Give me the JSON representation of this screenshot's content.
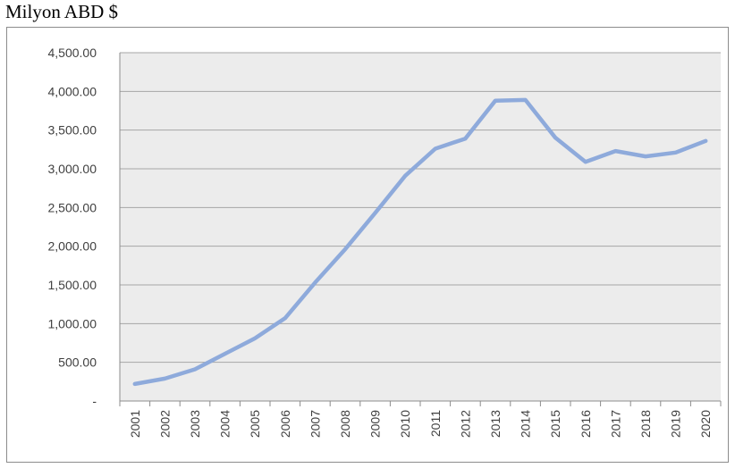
{
  "chart_data": {
    "type": "line",
    "title": "Milyon ABD $",
    "xlabel": "",
    "ylabel": "",
    "ylim": [
      0,
      4500
    ],
    "y_tick_labels": [
      "-",
      "500.00",
      "1,000.00",
      "1,500.00",
      "2,000.00",
      "2,500.00",
      "3,000.00",
      "3,500.00",
      "4,000.00",
      "4,500.00"
    ],
    "categories": [
      "2001",
      "2002",
      "2003",
      "2004",
      "2005",
      "2006",
      "2007",
      "2008",
      "2009",
      "2010",
      "2011",
      "2012",
      "2013",
      "2014",
      "2015",
      "2016",
      "2017",
      "2018",
      "2019",
      "2020"
    ],
    "series": [
      {
        "values": [
          220,
          290,
          410,
          610,
          810,
          1070,
          1530,
          1960,
          2430,
          2910,
          3260,
          3390,
          3880,
          3890,
          3400,
          3090,
          3230,
          3160,
          3210,
          3360
        ]
      }
    ],
    "grid": true,
    "legend": "none"
  },
  "colors": {
    "line": "#8eaadb",
    "plot_background": "#ececec",
    "gridline": "#a6a6a6",
    "axis": "#8c8c8c"
  }
}
